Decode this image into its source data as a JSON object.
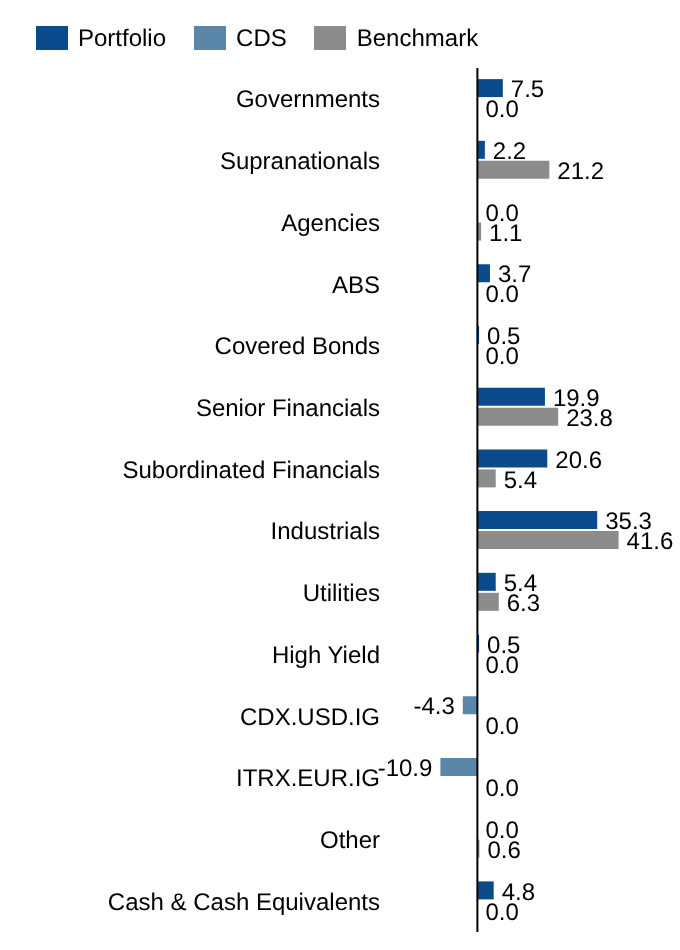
{
  "chart_data": {
    "type": "bar",
    "orientation": "horizontal",
    "legend": "top left",
    "categories": [
      "Governments",
      "Supranationals",
      "Agencies",
      "ABS",
      "Covered Bonds",
      "Senior Financials",
      "Subordinated Financials",
      "Industrials",
      "Utilities",
      "High Yield",
      "CDX.USD.IG",
      "ITRX.EUR.IG",
      "Other",
      "Cash & Cash Equivalents"
    ],
    "series": [
      {
        "name": "Portfolio",
        "color": "#0b4a8b",
        "values": [
          7.5,
          2.2,
          0,
          3.7,
          0.5,
          19.9,
          20.6,
          35.3,
          5.4,
          0.5,
          null,
          null,
          0,
          4.8
        ],
        "value_labels": [
          "7.5",
          "2.2",
          "0.0",
          "3.7",
          "0.5",
          "19.9",
          "20.6",
          "35.3",
          "5.4",
          "0.5",
          null,
          null,
          "0.0",
          "4.8"
        ]
      },
      {
        "name": "CDS",
        "color": "#5a87a9",
        "values": [
          null,
          null,
          null,
          null,
          null,
          null,
          null,
          null,
          null,
          null,
          -4.3,
          -10.9,
          null,
          null
        ],
        "value_labels": [
          null,
          null,
          null,
          null,
          null,
          null,
          null,
          null,
          null,
          null,
          "-4.3",
          "-10.9",
          null,
          null
        ]
      },
      {
        "name": "Benchmark",
        "color": "#8c8c8c",
        "values": [
          0,
          21.2,
          1.1,
          0,
          0,
          23.8,
          5.4,
          41.6,
          6.3,
          0,
          0,
          0,
          0.6,
          0
        ],
        "value_labels": [
          "0.0",
          "21.2",
          "1.1",
          "0.0",
          "0.0",
          "23.8",
          "5.4",
          "41.6",
          "6.3",
          "0.0",
          "0.0",
          "0.0",
          "0.6",
          "0.0"
        ]
      }
    ]
  }
}
